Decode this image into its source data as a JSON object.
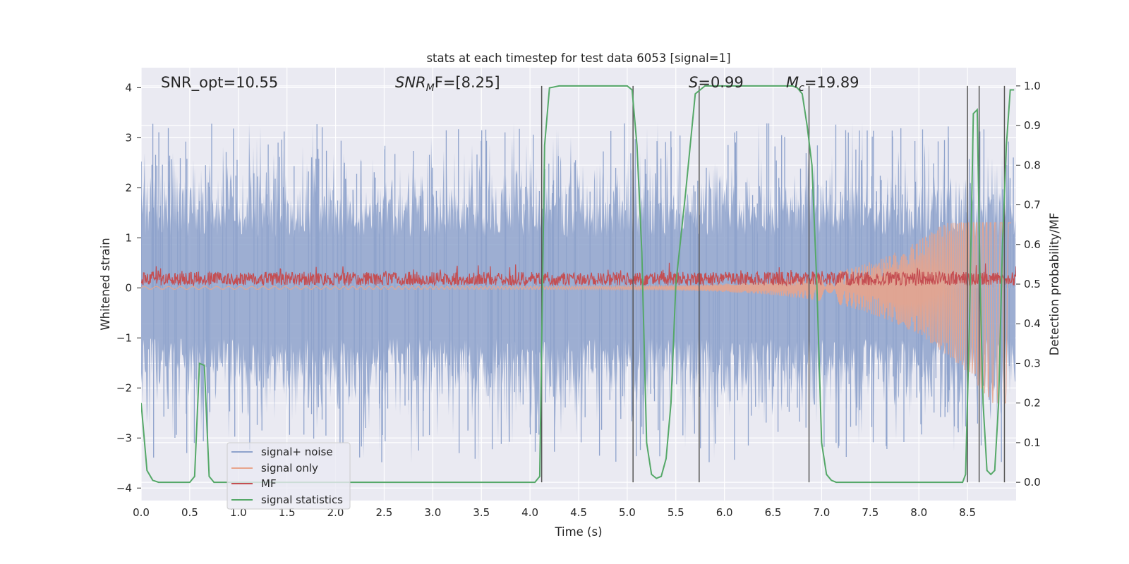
{
  "chart_data": {
    "type": "line",
    "title": "stats at each timestep for test data 6053 [signal=1]",
    "xlabel": "Time (s)",
    "ylabel": "Whitened strain",
    "y2label": "Detection probability/MF",
    "xlim": [
      0,
      9
    ],
    "ylim": [
      -4.25,
      4.4
    ],
    "y2lim": [
      -0.046,
      1.046
    ],
    "xticks": [
      "0.0",
      "0.5",
      "1.0",
      "1.5",
      "2.0",
      "2.5",
      "3.0",
      "3.5",
      "4.0",
      "4.5",
      "5.0",
      "5.5",
      "6.0",
      "6.5",
      "7.0",
      "7.5",
      "8.0",
      "8.5"
    ],
    "yticks": [
      "4",
      "3",
      "2",
      "1",
      "0",
      "−1",
      "−2",
      "−3",
      "−4"
    ],
    "y2ticks": [
      "1.0",
      "0.9",
      "0.8",
      "0.7",
      "0.6",
      "0.5",
      "0.4",
      "0.3",
      "0.2",
      "0.1",
      "0.0"
    ],
    "grid": true,
    "legend_position": "lower-left",
    "annotations": {
      "snr_opt": "SNR_opt=10.55",
      "snr_mf_base": "SNR",
      "snr_mf_sub": "M",
      "snr_mf_rest": "F=[8.25]",
      "s_italic": "S",
      "s_rest": "=0.99",
      "mc_base": "M",
      "mc_sub": "c",
      "mc_rest": "=19.89"
    },
    "series": [
      {
        "name": "signal+ noise",
        "color": "#8fa3cc",
        "axis": "left",
        "description_range": [
          -3.5,
          3.3
        ]
      },
      {
        "name": "signal only",
        "color": "#e8a48c",
        "axis": "left",
        "description_range": [
          -2.3,
          1.3
        ]
      },
      {
        "name": "MF",
        "color": "#c44e52",
        "axis": "left",
        "description_range": [
          0.05,
          0.5
        ]
      },
      {
        "name": "signal statistics",
        "color": "#55a868",
        "axis": "right",
        "x": [
          0.0,
          0.06,
          0.12,
          0.18,
          0.24,
          0.3,
          0.4,
          0.5,
          0.55,
          0.6,
          0.65,
          0.7,
          0.75,
          0.8,
          0.9,
          1.0,
          2.0,
          3.0,
          3.9,
          4.0,
          4.05,
          4.1,
          4.15,
          4.2,
          4.3,
          4.5,
          4.8,
          5.0,
          5.05,
          5.1,
          5.15,
          5.2,
          5.25,
          5.3,
          5.35,
          5.4,
          5.45,
          5.5,
          5.6,
          5.7,
          5.8,
          5.9,
          6.0,
          6.5,
          6.7,
          6.75,
          6.8,
          6.85,
          6.9,
          6.95,
          7.0,
          7.05,
          7.1,
          7.15,
          7.2,
          7.3,
          8.0,
          8.45,
          8.48,
          8.52,
          8.56,
          8.6,
          8.63,
          8.66,
          8.7,
          8.74,
          8.78,
          8.82,
          8.86,
          8.9,
          8.94,
          8.98
        ],
        "values": [
          0.2,
          0.03,
          0.005,
          0.0,
          0.0,
          0.0,
          0.0,
          0.0,
          0.015,
          0.3,
          0.295,
          0.015,
          0.0,
          0.0,
          0.0,
          0.0,
          0.0,
          0.0,
          0.0,
          0.0,
          0.0,
          0.015,
          0.85,
          0.995,
          1.0,
          1.0,
          1.0,
          1.0,
          0.99,
          0.85,
          0.58,
          0.1,
          0.02,
          0.01,
          0.015,
          0.06,
          0.2,
          0.5,
          0.73,
          0.98,
          1.0,
          1.0,
          1.0,
          1.0,
          1.0,
          0.995,
          0.98,
          0.9,
          0.8,
          0.5,
          0.1,
          0.02,
          0.005,
          0.0,
          0.0,
          0.0,
          0.0,
          0.0,
          0.02,
          0.4,
          0.93,
          0.94,
          0.5,
          0.2,
          0.03,
          0.02,
          0.03,
          0.2,
          0.6,
          0.85,
          0.99,
          0.99
        ]
      }
    ],
    "vertical_lines_x": [
      4.12,
      5.06,
      5.74,
      6.87,
      8.5,
      8.62,
      8.88
    ]
  }
}
